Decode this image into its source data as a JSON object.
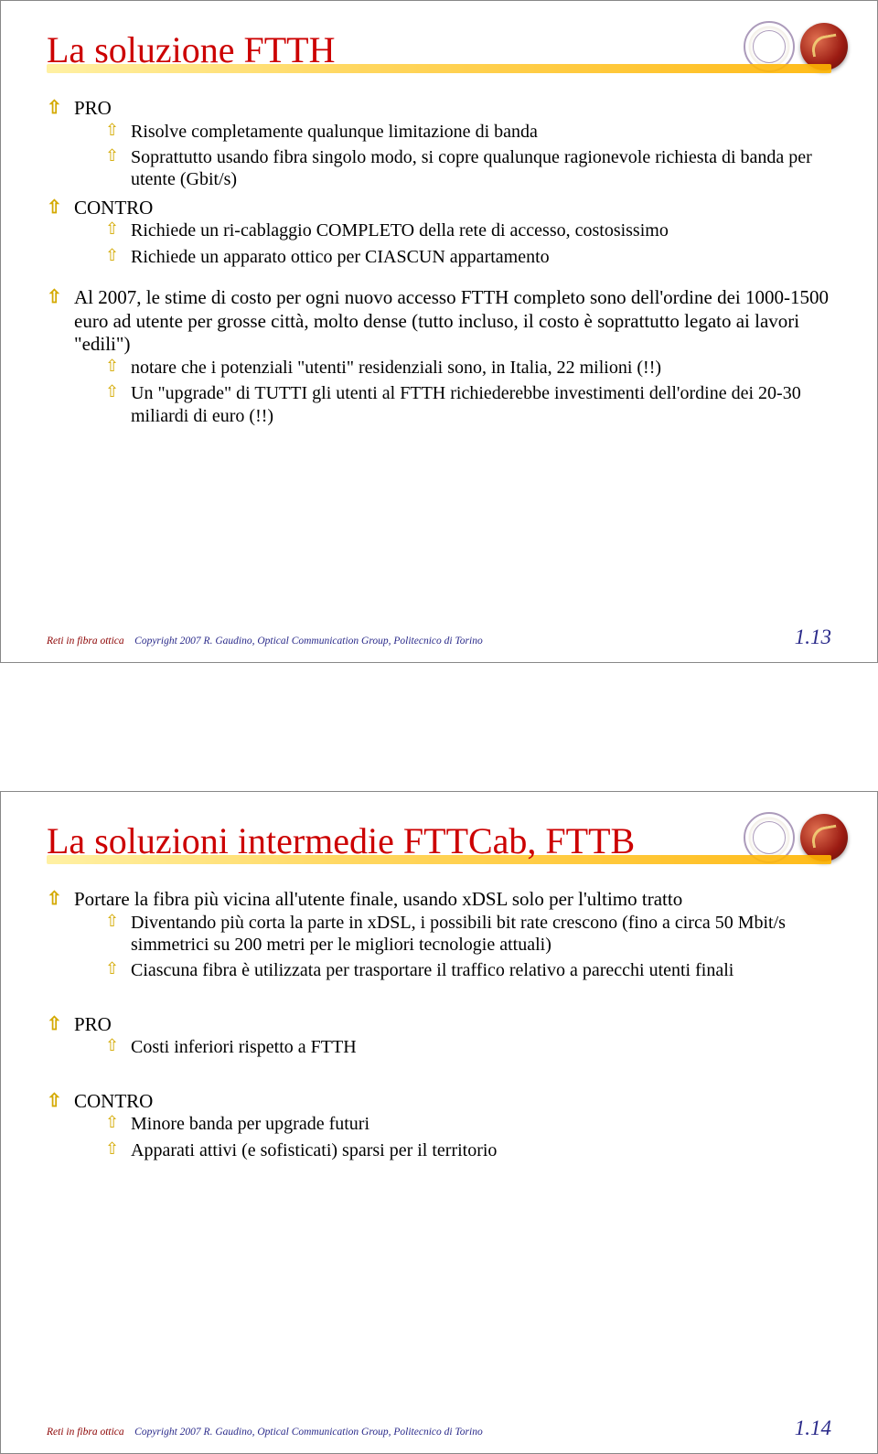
{
  "colors": {
    "title": "#cc0000",
    "bullet": "#d4a900",
    "text": "#000000",
    "footer_red": "#8b0000",
    "footer_blue": "#2a2a8a",
    "background": "#ffffff"
  },
  "footer": {
    "part1": "Reti in fibra ottica",
    "part2": "Copyright 2007 R. Gaudino, Optical Communication Group, Politecnico di Torino"
  },
  "slide13": {
    "title": "La soluzione FTTH",
    "page": "1.13",
    "items": [
      "PRO",
      "CONTRO"
    ],
    "pro_sub": [
      "Risolve completamente qualunque limitazione di banda",
      "Soprattutto usando fibra singolo modo, si copre qualunque ragionevole richiesta di banda per utente (Gbit/s)"
    ],
    "contro_sub": [
      "Richiede un ri-cablaggio COMPLETO della rete di accesso, costosissimo",
      "Richiede un apparato ottico per CIASCUN appartamento"
    ],
    "al2007": "Al 2007, le stime di costo per ogni nuovo accesso FTTH completo sono dell'ordine dei 1000-1500 euro ad utente per grosse città, molto dense (tutto incluso, il costo è soprattutto legato ai lavori \"edili\")",
    "al2007_sub": [
      "notare che i potenziali \"utenti\" residenziali sono, in Italia, 22 milioni (!!)",
      "Un \"upgrade\" di TUTTI gli utenti al FTTH richiederebbe investimenti dell'ordine dei 20-30 miliardi di euro (!!)"
    ]
  },
  "slide14": {
    "title": "La soluzioni intermedie FTTCab, FTTB",
    "page": "1.14",
    "intro": "Portare la fibra più vicina all'utente finale, usando xDSL solo per l'ultimo tratto",
    "intro_sub": [
      "Diventando più corta la parte in xDSL, i possibili bit rate crescono (fino a circa 50 Mbit/s simmetrici su 200 metri per le migliori tecnologie attuali)",
      "Ciascuna fibra è utilizzata per trasportare il traffico relativo a parecchi utenti finali"
    ],
    "pro_label": "PRO",
    "pro_sub": [
      "Costi inferiori rispetto a FTTH"
    ],
    "contro_label": "CONTRO",
    "contro_sub": [
      "Minore banda per upgrade futuri",
      "Apparati attivi (e sofisticati) sparsi per il territorio"
    ]
  }
}
